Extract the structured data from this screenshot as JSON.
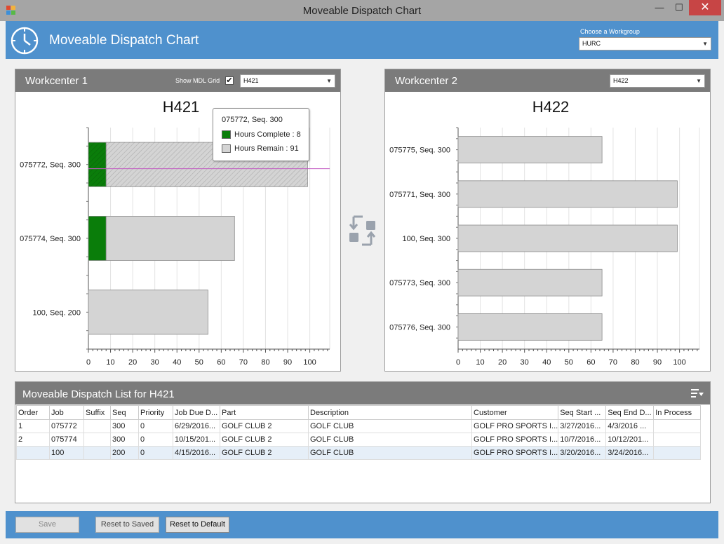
{
  "window": {
    "title": "Moveable Dispatch Chart",
    "min_glyph": "—",
    "max_glyph": "☐",
    "close_glyph": "✕"
  },
  "header": {
    "title": "Moveable Dispatch Chart",
    "workgroup_label": "Choose a Workgroup",
    "workgroup_value": "HURC",
    "accent_color": "#4f91cd"
  },
  "workcenter1": {
    "title": "Workcenter 1",
    "mdl_label": "Show MDL Grid",
    "mdl_checked": "✔",
    "select_value": "H421"
  },
  "workcenter2": {
    "title": "Workcenter 2",
    "select_value": "H422"
  },
  "tooltip": {
    "title": "075772, Seq. 300",
    "complete_label": "Hours Complete : 8",
    "remain_label": "Hours Remain : 91"
  },
  "chart_data": [
    {
      "type": "bar",
      "orientation": "horizontal",
      "stacked": true,
      "title": "H421",
      "categories": [
        "075772, Seq. 300",
        "075774, Seq. 300",
        "100, Seq. 200"
      ],
      "series": [
        {
          "name": "Hours Complete",
          "color": "#0a7d0a",
          "values": [
            8,
            8,
            0
          ]
        },
        {
          "name": "Hours Remain",
          "color": "#d4d4d4",
          "values": [
            91,
            58,
            54
          ]
        }
      ],
      "xlim": [
        0,
        109
      ],
      "xticks": [
        0,
        10,
        20,
        30,
        40,
        50,
        60,
        70,
        80,
        90,
        100
      ],
      "selected_category": "075772, Seq. 300",
      "grid": true
    },
    {
      "type": "bar",
      "orientation": "horizontal",
      "stacked": true,
      "title": "H422",
      "categories": [
        "075775, Seq. 300",
        "075771, Seq. 300",
        "100, Seq. 300",
        "075773, Seq. 300",
        "075776, Seq. 300"
      ],
      "series": [
        {
          "name": "Hours Complete",
          "color": "#0a7d0a",
          "values": [
            0,
            0,
            0,
            0,
            0
          ]
        },
        {
          "name": "Hours Remain",
          "color": "#d4d4d4",
          "values": [
            65,
            99,
            99,
            65,
            65
          ]
        }
      ],
      "xlim": [
        0,
        109
      ],
      "xticks": [
        0,
        10,
        20,
        30,
        40,
        50,
        60,
        70,
        80,
        90,
        100
      ],
      "grid": true
    }
  ],
  "list": {
    "title": "Moveable Dispatch List for H421",
    "columns": [
      "Order",
      "Job",
      "Suffix",
      "Seq",
      "Priority",
      "Job Due D...",
      "Part",
      "Description",
      "Customer",
      "Seq Start ...",
      "Seq End D...",
      "In Process"
    ],
    "rows": [
      [
        "1",
        "075772",
        "",
        "300",
        "0",
        "6/29/2016...",
        "GOLF CLUB 2",
        "GOLF CLUB",
        "GOLF PRO SPORTS I...",
        "3/27/2016...",
        "4/3/2016 ...",
        ""
      ],
      [
        "2",
        "075774",
        "",
        "300",
        "0",
        "10/15/201...",
        "GOLF CLUB 2",
        "GOLF CLUB",
        "GOLF PRO SPORTS I...",
        "10/7/2016...",
        "10/12/201...",
        ""
      ],
      [
        "",
        "100",
        "",
        "200",
        "0",
        "4/15/2016...",
        "GOLF CLUB 2",
        "GOLF CLUB",
        "GOLF PRO SPORTS I...",
        "3/20/2016...",
        "3/24/2016...",
        ""
      ]
    ]
  },
  "footer": {
    "save_label": "Save",
    "reset_saved_label": "Reset to Saved",
    "reset_default_label": "Reset to Default"
  }
}
